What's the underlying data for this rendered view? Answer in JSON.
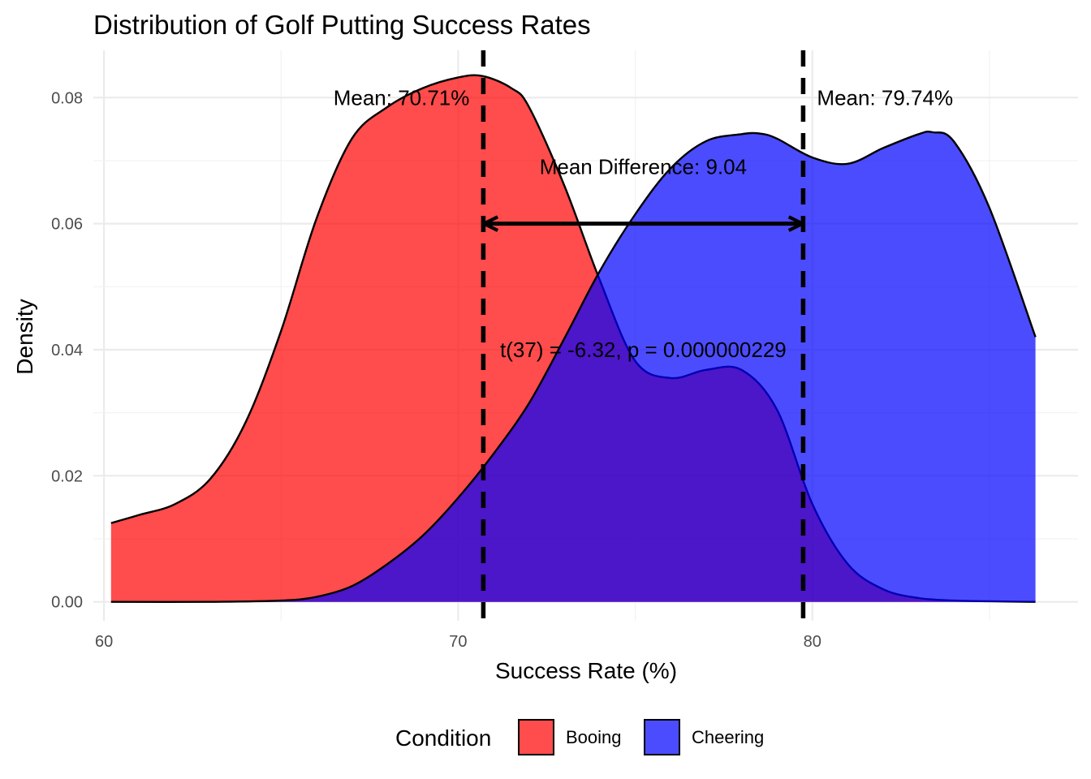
{
  "chart_data": {
    "type": "area",
    "subtype": "density",
    "title": "Distribution of Golf Putting Success Rates",
    "xlabel": "Success Rate (%)",
    "ylabel": "Density",
    "xlim": [
      59.7,
      87.5
    ],
    "ylim": [
      -0.003,
      0.0875
    ],
    "x_ticks": [
      60,
      70,
      80
    ],
    "x_tick_labels": [
      "60",
      "70",
      "80"
    ],
    "y_ticks": [
      0.0,
      0.02,
      0.04,
      0.06,
      0.08
    ],
    "y_tick_labels": [
      "0.00",
      "0.02",
      "0.04",
      "0.06",
      "0.08"
    ],
    "grid": true,
    "legend": {
      "title": "Condition",
      "position": "bottom"
    },
    "series": [
      {
        "name": "Booing",
        "color": "#FF0000",
        "x": [
          60.2,
          61.0,
          62.0,
          63.0,
          64.0,
          65.0,
          66.0,
          67.0,
          68.0,
          69.0,
          70.0,
          70.7,
          71.5,
          72.0,
          73.0,
          74.0,
          75.0,
          76.0,
          77.0,
          78.0,
          79.0,
          80.0,
          81.0,
          82.0,
          83.0,
          84.0,
          85.0,
          86.3
        ],
        "y": [
          0.0125,
          0.0138,
          0.0155,
          0.0195,
          0.0285,
          0.043,
          0.0608,
          0.0735,
          0.0785,
          0.0815,
          0.0832,
          0.0834,
          0.0815,
          0.0785,
          0.066,
          0.051,
          0.0382,
          0.0355,
          0.0368,
          0.0368,
          0.0305,
          0.0155,
          0.006,
          0.002,
          0.0006,
          0.0002,
          0.0001,
          0.0
        ]
      },
      {
        "name": "Cheering",
        "color": "#0000FF",
        "x": [
          60.2,
          63.0,
          65.0,
          66.0,
          67.0,
          68.0,
          69.0,
          70.0,
          71.0,
          72.0,
          73.0,
          74.0,
          75.0,
          76.0,
          77.0,
          78.0,
          78.5,
          79.0,
          80.0,
          81.0,
          82.0,
          83.0,
          83.4,
          84.0,
          85.0,
          86.3
        ],
        "y": [
          0.0,
          0.0,
          0.0002,
          0.0008,
          0.0025,
          0.006,
          0.0105,
          0.0165,
          0.0235,
          0.0315,
          0.0418,
          0.0525,
          0.0615,
          0.0688,
          0.0731,
          0.0742,
          0.0743,
          0.0735,
          0.0705,
          0.0695,
          0.072,
          0.0742,
          0.0745,
          0.073,
          0.0625,
          0.042
        ]
      }
    ],
    "mean_lines": [
      {
        "group": "Booing",
        "x": 70.71,
        "label": "Mean: 70.71%"
      },
      {
        "group": "Cheering",
        "x": 79.74,
        "label": "Mean: 79.74%"
      }
    ],
    "annotations": {
      "difference_arrow": {
        "x_start": 70.71,
        "x_end": 79.74,
        "y": 0.06
      },
      "difference_label": "Mean Difference: 9.04",
      "t_test_label": "t(37) = -6.32, p = 0.000000229"
    }
  }
}
